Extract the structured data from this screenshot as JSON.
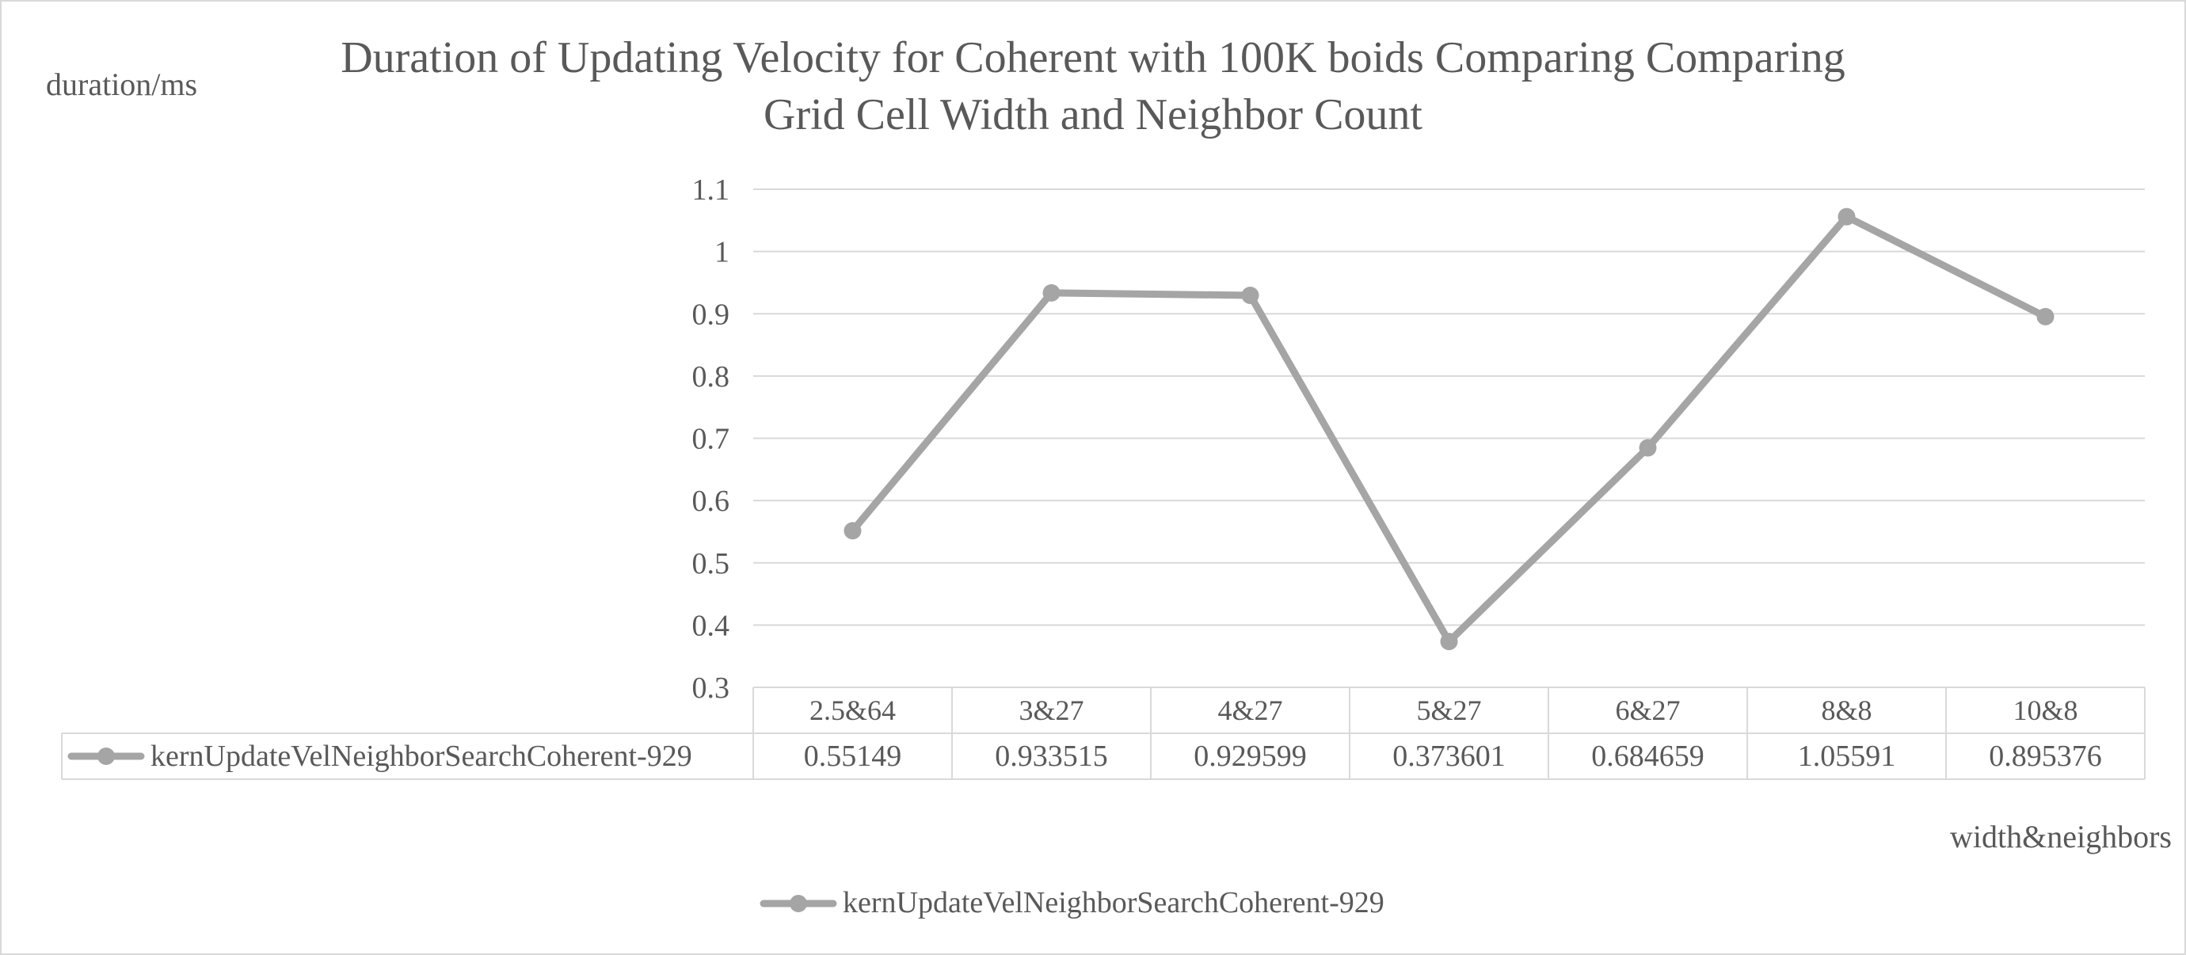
{
  "chart_data": {
    "type": "line",
    "title_lines": [
      "Duration of Updating Velocity for Coherent with 100K boids Comparing Comparing",
      "Grid Cell Width and Neighbor Count"
    ],
    "ylabel": "duration/ms",
    "xlabel": "width&neighbors",
    "categories": [
      "2.5&64",
      "3&27",
      "4&27",
      "5&27",
      "6&27",
      "8&8",
      "10&8"
    ],
    "ylim": [
      0.3,
      1.1
    ],
    "yticks": [
      "0.3",
      "0.4",
      "0.5",
      "0.6",
      "0.7",
      "0.8",
      "0.9",
      "1",
      "1.1"
    ],
    "grid": true,
    "legend_position": "bottom",
    "data_table": true,
    "series": [
      {
        "name": "kernUpdateVelNeighborSearchCoherent-929",
        "values": [
          0.55149,
          0.933515,
          0.929599,
          0.373601,
          0.684659,
          1.05591,
          0.895376
        ],
        "value_labels": [
          "0.55149",
          "0.933515",
          "0.929599",
          "0.373601",
          "0.684659",
          "1.05591",
          "0.895376"
        ],
        "color": "#a5a5a5"
      }
    ]
  }
}
